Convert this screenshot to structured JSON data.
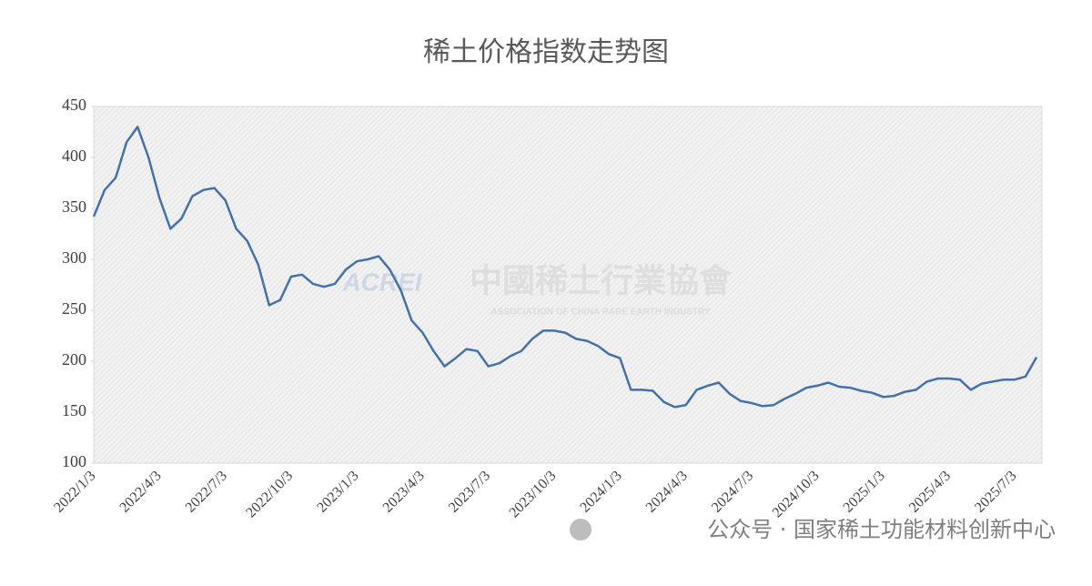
{
  "chart_data": {
    "type": "line",
    "title": "稀土价格指数走势图",
    "categories": [
      "2022/1/3",
      null,
      null,
      null,
      null,
      null,
      "2022/4/3",
      null,
      null,
      null,
      null,
      null,
      "2022/7/3",
      null,
      null,
      null,
      null,
      null,
      "2022/10/3",
      null,
      null,
      null,
      null,
      null,
      "2023/1/3",
      null,
      null,
      null,
      null,
      null,
      "2023/4/3",
      null,
      null,
      null,
      null,
      null,
      "2023/7/3",
      null,
      null,
      null,
      null,
      null,
      "2023/10/3",
      null,
      null,
      null,
      null,
      null,
      "2024/1/3",
      null,
      null,
      null,
      null,
      null,
      "2024/4/3",
      null,
      null,
      null,
      null,
      null,
      "2024/7/3",
      null,
      null,
      null,
      null,
      null,
      "2024/10/3",
      null,
      null,
      null,
      null,
      null,
      "2025/1/3",
      null,
      null,
      null,
      null,
      null,
      "2025/4/3",
      null,
      null,
      null,
      null,
      null,
      "2025/7/3",
      null,
      null
    ],
    "series": [
      {
        "color": "#4472a8",
        "values": [
          342,
          368,
          380,
          415,
          430,
          400,
          360,
          330,
          340,
          362,
          368,
          370,
          358,
          330,
          318,
          295,
          255,
          260,
          283,
          285,
          276,
          273,
          276,
          290,
          298,
          300,
          303,
          290,
          270,
          240,
          228,
          210,
          195,
          203,
          212,
          210,
          195,
          198,
          205,
          210,
          222,
          230,
          230,
          228,
          222,
          220,
          215,
          207,
          203,
          172,
          172,
          171,
          160,
          155,
          157,
          172,
          176,
          179,
          168,
          161,
          159,
          156,
          157,
          163,
          168,
          174,
          176,
          179,
          175,
          174,
          171,
          169,
          165,
          166,
          170,
          172,
          180,
          183,
          183,
          182,
          172,
          178,
          180,
          182,
          182,
          185,
          204
        ]
      }
    ],
    "ylim": [
      100,
      450
    ],
    "yticks": [
      100,
      150,
      200,
      250,
      300,
      350,
      400,
      450
    ],
    "grid": false
  },
  "watermark": {
    "logo": "ACREI",
    "name": "中國稀土行業協會",
    "english": "ASSOCIATION OF CHINA RARE EARTH INDUSTRY"
  },
  "footer": "公众号 · 国家稀土功能材料创新中心"
}
